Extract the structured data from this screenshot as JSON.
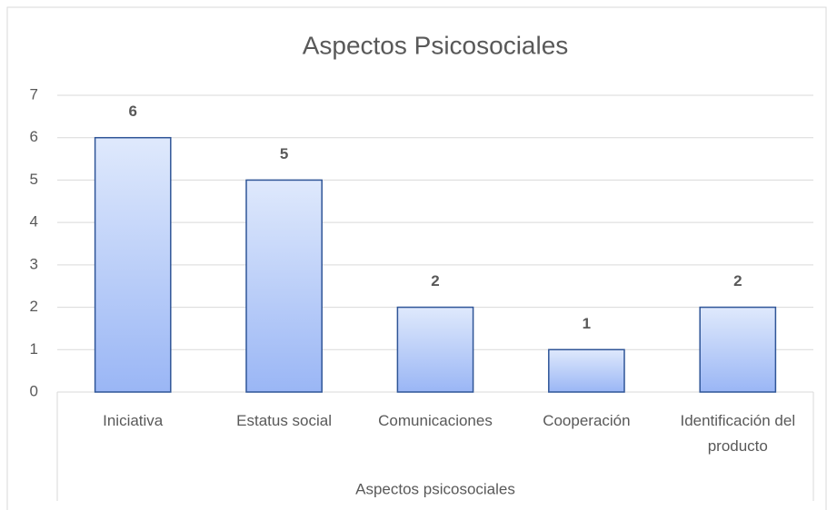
{
  "chart_data": {
    "type": "bar",
    "title": "Aspectos Psicosociales",
    "x_label": "Aspectos psicosociales",
    "categories": [
      "Iniciativa",
      "Estatus social",
      "Comunicaciones",
      "Cooperación",
      "Identificación del producto"
    ],
    "values": [
      6,
      5,
      2,
      1,
      2
    ],
    "ylim": [
      0,
      7
    ],
    "yticks": [
      0,
      1,
      2,
      3,
      4,
      5,
      6,
      7
    ],
    "grid": true,
    "color": "#9ab6f5",
    "edge_color": "#2f5597"
  }
}
